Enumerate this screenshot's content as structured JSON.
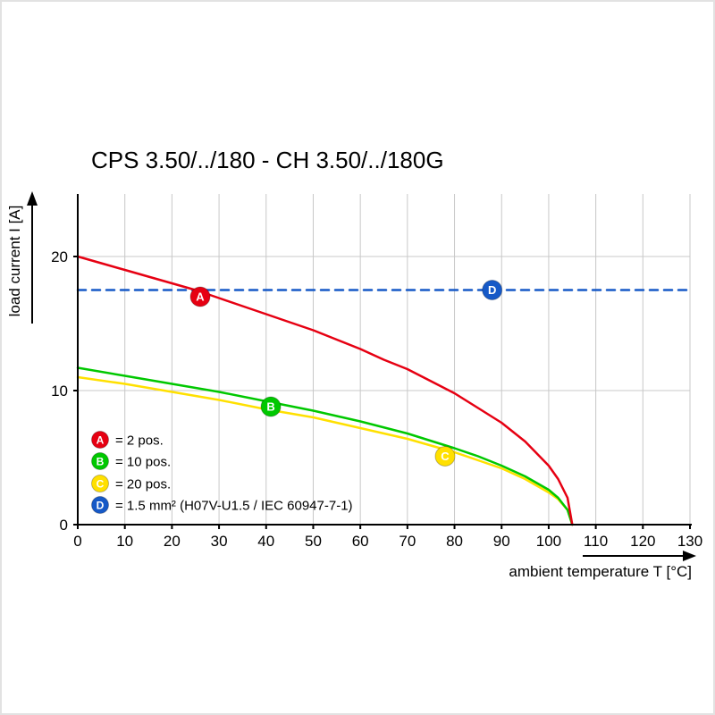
{
  "page": {
    "title": "CPS 3.50/../180 - CH 3.50/../180G"
  },
  "chart_data": {
    "type": "line",
    "title": "CPS 3.50/../180 - CH 3.50/../180G",
    "xlabel": "ambient temperature T [°C]",
    "ylabel": "load current I [A]",
    "xlim": [
      0,
      130
    ],
    "ylim": [
      0,
      25
    ],
    "x_ticks": [
      0,
      10,
      20,
      30,
      40,
      50,
      60,
      70,
      80,
      90,
      100,
      110,
      120,
      130
    ],
    "y_ticks": [
      0,
      10,
      20
    ],
    "grid": true,
    "legend_position": "inside-bottom-left",
    "grid_color": "#c8c8c8",
    "axis_color": "#000000",
    "series": [
      {
        "id": "A",
        "legend_label": "= 2 pos.",
        "color": "#e60012",
        "style": "solid",
        "x": [
          0,
          5,
          10,
          15,
          20,
          25,
          30,
          35,
          40,
          45,
          50,
          55,
          60,
          65,
          70,
          75,
          80,
          85,
          90,
          95,
          100,
          102,
          104,
          105
        ],
        "y": [
          20,
          19.5,
          19,
          18.5,
          18,
          17.5,
          16.9,
          16.3,
          15.7,
          15.1,
          14.5,
          13.8,
          13.1,
          12.3,
          11.6,
          10.7,
          9.8,
          8.7,
          7.6,
          6.2,
          4.4,
          3.4,
          2,
          0
        ],
        "marker": {
          "x": 26,
          "y": 17
        }
      },
      {
        "id": "B",
        "legend_label": "= 10 pos.",
        "color": "#00c800",
        "style": "solid",
        "x": [
          0,
          10,
          20,
          30,
          40,
          50,
          60,
          70,
          80,
          85,
          90,
          95,
          100,
          102,
          104,
          105
        ],
        "y": [
          11.7,
          11.1,
          10.5,
          9.9,
          9.2,
          8.5,
          7.7,
          6.8,
          5.7,
          5.1,
          4.4,
          3.6,
          2.6,
          2,
          1.1,
          0
        ],
        "marker": {
          "x": 41,
          "y": 8.8
        }
      },
      {
        "id": "C",
        "legend_label": "= 20 pos.",
        "color": "#ffe000",
        "style": "solid",
        "x": [
          0,
          10,
          20,
          30,
          40,
          50,
          60,
          70,
          80,
          85,
          90,
          95,
          100,
          102,
          104,
          105
        ],
        "y": [
          11,
          10.5,
          9.9,
          9.3,
          8.6,
          8,
          7.2,
          6.4,
          5.4,
          4.8,
          4.2,
          3.4,
          2.4,
          1.9,
          1.1,
          0
        ],
        "marker": {
          "x": 78,
          "y": 5.1
        }
      },
      {
        "id": "D",
        "legend_label": "= 1.5 mm² (H07V-U1.5 / IEC 60947-7-1)",
        "color": "#1659c7",
        "style": "dashed",
        "x": [
          0,
          130
        ],
        "y": [
          17.5,
          17.5
        ],
        "marker": {
          "x": 88,
          "y": 17.5
        }
      }
    ]
  }
}
